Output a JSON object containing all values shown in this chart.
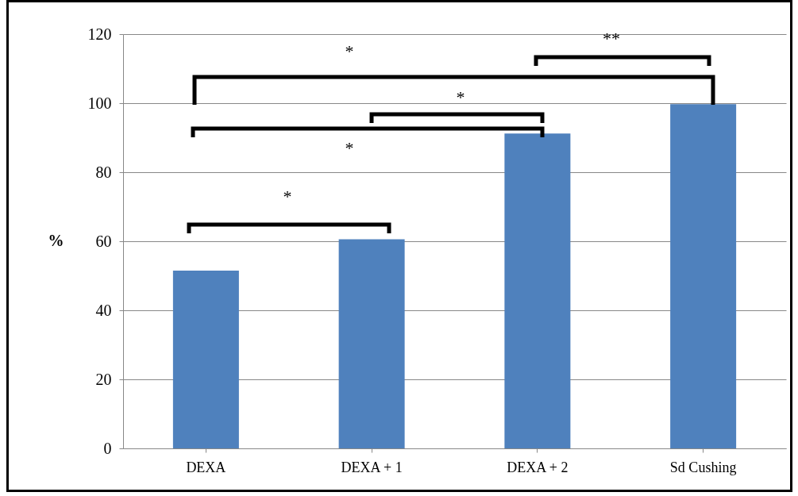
{
  "chart_data": {
    "type": "bar",
    "categories": [
      "DEXA",
      "DEXA + 1",
      "DEXA + 2",
      "Sd Cushing"
    ],
    "values": [
      51.5,
      60.6,
      91.2,
      99.7
    ],
    "color": "#4f81bd",
    "ylabel": "%",
    "ylim": [
      0,
      120
    ],
    "yticks": [
      0,
      20,
      40,
      60,
      80,
      100,
      120
    ],
    "grid": "y",
    "annotations": [
      "*",
      "**",
      "*",
      "*",
      "*"
    ]
  }
}
